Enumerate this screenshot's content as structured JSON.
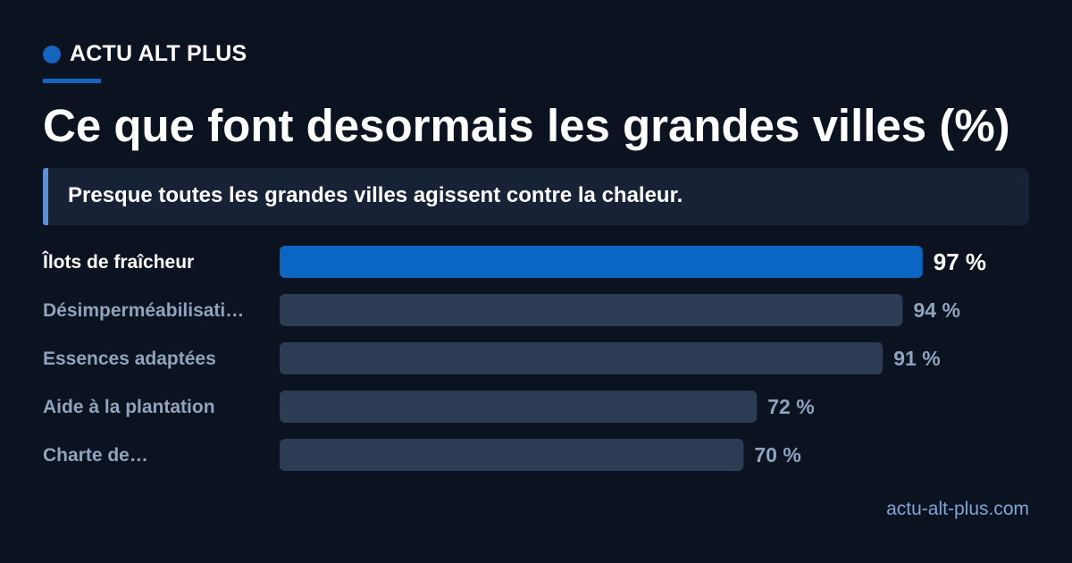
{
  "header": {
    "brand_name": "ACTU ALT PLUS",
    "title": "Ce que font desormais les grandes villes (%)",
    "subtitle": "Presque toutes les grandes villes agissent contre la chaleur."
  },
  "colors": {
    "accent": "#1565c0",
    "bar_highlight": "#0a66c2",
    "bar_default": "#2d3c55",
    "label_highlight": "#ffffff",
    "label_default": "#8fa3bf"
  },
  "chart_data": {
    "type": "bar",
    "orientation": "horizontal",
    "categories": [
      "Îlots de fraîcheur",
      "Désimperméabilisati…",
      "Essences adaptées",
      "Aide à la plantation",
      "Charte de…"
    ],
    "values": [
      97,
      94,
      91,
      72,
      70
    ],
    "value_labels": [
      "97 %",
      "94 %",
      "91 %",
      "72 %",
      "70 %"
    ],
    "highlight_index": 0,
    "xlim": [
      0,
      100
    ]
  },
  "footer": {
    "site": "actu-alt-plus.com"
  }
}
